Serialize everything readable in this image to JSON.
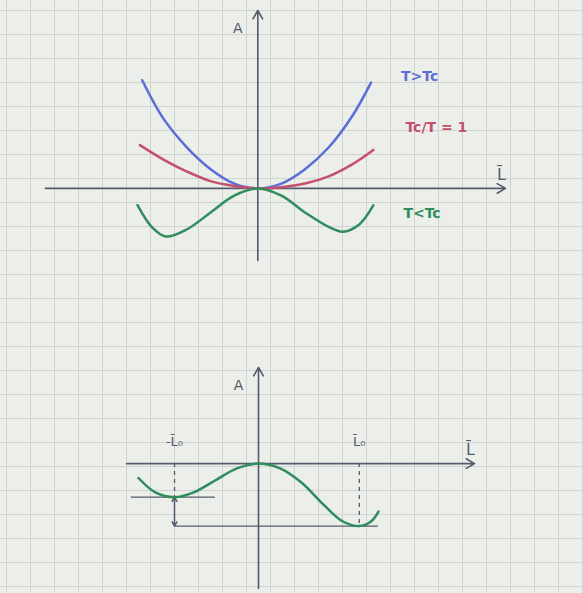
{
  "chart_data": [
    {
      "type": "line",
      "x_label": "L̄",
      "y_label": "A",
      "xlim": [
        -9,
        10.5
      ],
      "ylim": [
        -3,
        7.4
      ],
      "xticks": [],
      "yticks": [],
      "tick_labels": false,
      "series": [
        {
          "name": "T>Tc",
          "color": "#5a6ed6",
          "x": [
            -4.9,
            -4,
            -3,
            -2,
            -1,
            0,
            1,
            2,
            3,
            4,
            4.8
          ],
          "values": [
            4.5,
            2.9,
            1.7,
            0.8,
            0.2,
            0,
            0.2,
            0.8,
            1.7,
            3.0,
            4.4
          ]
        },
        {
          "name": "Tc/T = 1",
          "color": "#c4506e",
          "x": [
            -5,
            -4,
            -3,
            -2,
            -1,
            0,
            1,
            2,
            3,
            4,
            4.9
          ],
          "values": [
            1.8,
            1.2,
            0.7,
            0.3,
            0.1,
            0,
            0.05,
            0.2,
            0.5,
            1.0,
            1.6
          ]
        },
        {
          "name": "T<Tc",
          "color": "#2f8c5c",
          "x": [
            -5.1,
            -4.5,
            -3.9,
            -3,
            -2,
            -1,
            0,
            1,
            2,
            3,
            3.6,
            4.3,
            4.9
          ],
          "values": [
            -0.7,
            -1.6,
            -2.0,
            -1.7,
            -1.0,
            -0.3,
            0,
            -0.3,
            -1.0,
            -1.6,
            -1.8,
            -1.5,
            -0.7
          ]
        }
      ]
    },
    {
      "type": "line",
      "x_label": "L̄",
      "y_label": "A",
      "xlim": [
        -5.5,
        9
      ],
      "ylim": [
        -5.2,
        4
      ],
      "xticks": [],
      "yticks": [],
      "tick_labels": false,
      "series": [
        {
          "color": "#2f8c5c",
          "x": [
            -5,
            -4.3,
            -3.5,
            -2.7,
            -1.8,
            -0.9,
            0,
            0.9,
            1.8,
            2.7,
            3.5,
            4.2,
            4.7,
            5
          ],
          "values": [
            -0.6,
            -1.2,
            -1.4,
            -1.2,
            -0.7,
            -0.2,
            0,
            -0.2,
            -0.8,
            -1.7,
            -2.4,
            -2.6,
            -2.4,
            -2.0
          ]
        }
      ],
      "annotations": [
        {
          "label": "-L̄₀",
          "x": -3.5,
          "y": -1.4
        },
        {
          "label": "L̄₀",
          "x": 4.2,
          "y": -2.6
        }
      ]
    }
  ]
}
